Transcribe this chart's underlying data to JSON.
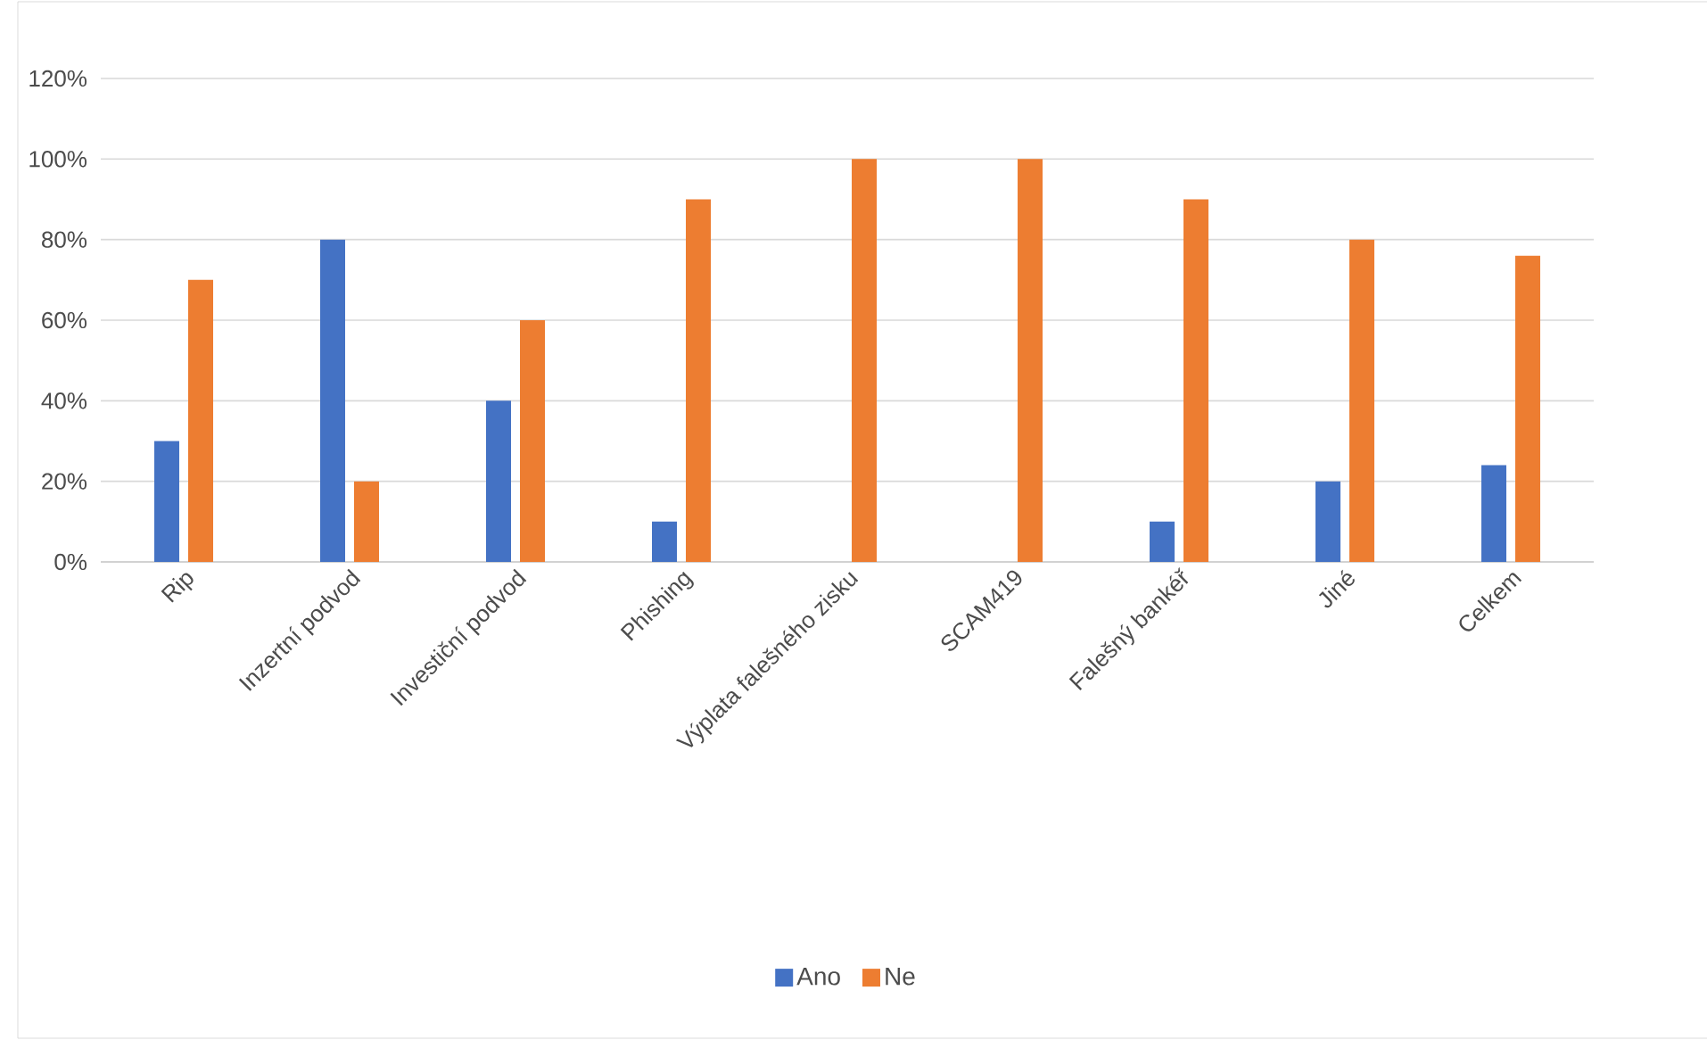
{
  "chart_data": {
    "type": "bar",
    "categories": [
      "Rip",
      "Inzertní podvod",
      "Investiční podvod",
      "Phishing",
      "Výplata falešného zisku",
      "SCAM419",
      "Falešný bankéř",
      "Jiné",
      "Celkem"
    ],
    "series": [
      {
        "name": "Ano",
        "color": "#4472c4",
        "values": [
          30,
          80,
          40,
          10,
          0,
          0,
          10,
          20,
          24
        ]
      },
      {
        "name": "Ne",
        "color": "#ed7d31",
        "values": [
          70,
          20,
          60,
          90,
          100,
          100,
          90,
          80,
          76
        ]
      }
    ],
    "ylim": [
      0,
      120
    ],
    "yticks": [
      {
        "value": 0,
        "label": "0%"
      },
      {
        "value": 20,
        "label": "20%"
      },
      {
        "value": 40,
        "label": "40%"
      },
      {
        "value": 60,
        "label": "60%"
      },
      {
        "value": 80,
        "label": "80%"
      },
      {
        "value": 100,
        "label": "100%"
      },
      {
        "value": 120,
        "label": "120%"
      }
    ],
    "grid": "y",
    "legend": "bottom"
  }
}
